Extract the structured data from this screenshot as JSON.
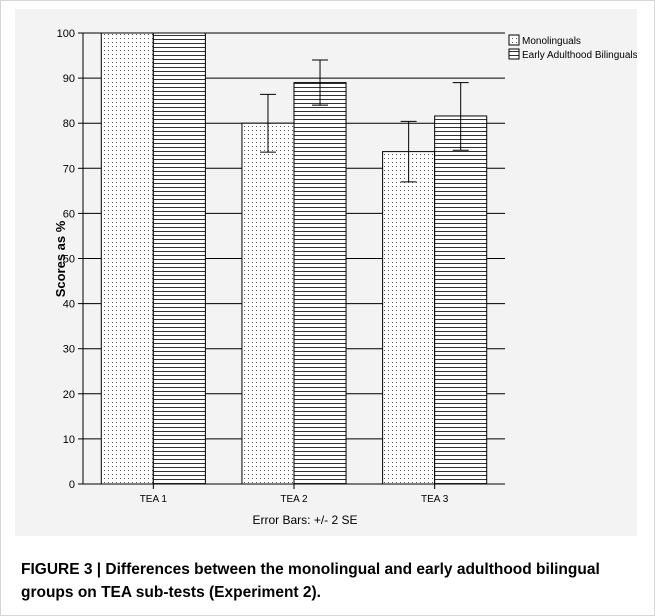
{
  "chart_data": {
    "type": "bar",
    "categories": [
      "TEA 1",
      "TEA 2",
      "TEA 3"
    ],
    "series": [
      {
        "name": "Monolinguals",
        "values": [
          100,
          80,
          73.7
        ],
        "error_low": [
          100,
          73.6,
          67
        ],
        "error_high": [
          100,
          86.4,
          80.4
        ],
        "pattern": "dots"
      },
      {
        "name": "Early Adulthood Bilinguals",
        "values": [
          100,
          89,
          81.6
        ],
        "error_low": [
          100,
          84,
          74
        ],
        "error_high": [
          100,
          94,
          89
        ],
        "pattern": "horizontal-lines"
      }
    ],
    "ylabel": "Scores as %",
    "ylim": [
      0,
      100
    ],
    "yticks": [
      0,
      10,
      20,
      30,
      40,
      50,
      60,
      70,
      80,
      90,
      100
    ],
    "grid": "horizontal",
    "legend_position": "top-right",
    "error_bar_note": "Error Bars: +/- 2 SE"
  },
  "caption": "FIGURE 3 | Differences between the monolingual and early adulthood bilingual groups on TEA sub-tests (Experiment 2)."
}
